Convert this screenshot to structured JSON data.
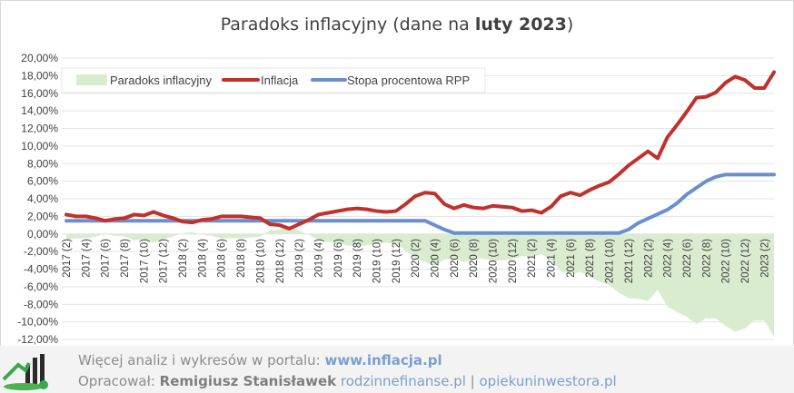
{
  "chart_data": {
    "type": "line",
    "title_prefix": "Paradoks inflacyjny (dane na ",
    "title_bold": "luty 2023",
    "title_suffix": ")",
    "ylim": [
      -12,
      20
    ],
    "y_ticks": [
      "20,00%",
      "18,00%",
      "16,00%",
      "14,00%",
      "12,00%",
      "10,00%",
      "8,00%",
      "6,00%",
      "4,00%",
      "2,00%",
      "0,00%",
      "-2,00%",
      "-4,00%",
      "-6,00%",
      "-8,00%",
      "-10,00%",
      "-12,00%"
    ],
    "x_ticks": [
      "2017 (2)",
      "2017 (4)",
      "2017 (6)",
      "2017 (8)",
      "2017 (10)",
      "2017 (12)",
      "2018 (2)",
      "2018 (4)",
      "2018 (6)",
      "2018 (8)",
      "2018 (10)",
      "2018 (12)",
      "2019 (2)",
      "2019 (4)",
      "2019 (6)",
      "2019 (8)",
      "2019 (10)",
      "2019 (12)",
      "2020 (2)",
      "2020 (4)",
      "2020 (6)",
      "2020 (8)",
      "2020 (10)",
      "2020 (12)",
      "2021 (2)",
      "2021 (4)",
      "2021 (6)",
      "2021 (8)",
      "2021 (10)",
      "2021 (12)",
      "2022 (2)",
      "2022 (4)",
      "2022 (6)",
      "2022 (8)",
      "2022 (10)",
      "2022 (12)",
      "2023 (2)"
    ],
    "grid": true,
    "legend_position": "top-left",
    "series": [
      {
        "name": "Paradoks inflacyjny",
        "kind": "area",
        "color": "#d9ecd0"
      },
      {
        "name": "Inflacja",
        "kind": "line",
        "color": "#c0312b",
        "values": [
          2.2,
          2.0,
          2.0,
          1.8,
          1.5,
          1.7,
          1.8,
          2.2,
          2.1,
          2.5,
          2.1,
          1.8,
          1.4,
          1.3,
          1.6,
          1.7,
          2.0,
          2.0,
          2.0,
          1.9,
          1.8,
          1.1,
          1.0,
          0.6,
          1.1,
          1.6,
          2.2,
          2.4,
          2.6,
          2.8,
          2.9,
          2.8,
          2.6,
          2.5,
          2.6,
          3.4,
          4.3,
          4.7,
          4.6,
          3.4,
          2.9,
          3.3,
          3.0,
          2.9,
          3.2,
          3.1,
          3.0,
          2.6,
          2.7,
          2.4,
          3.1,
          4.3,
          4.7,
          4.4,
          5.0,
          5.5,
          5.9,
          6.8,
          7.8,
          8.6,
          9.4,
          8.6,
          11.0,
          12.4,
          13.9,
          15.5,
          15.6,
          16.1,
          17.2,
          17.9,
          17.5,
          16.6,
          16.6,
          18.4
        ]
      },
      {
        "name": "Stopa procentowa RPP",
        "kind": "line",
        "color": "#6a8fd0",
        "values": [
          1.5,
          1.5,
          1.5,
          1.5,
          1.5,
          1.5,
          1.5,
          1.5,
          1.5,
          1.5,
          1.5,
          1.5,
          1.5,
          1.5,
          1.5,
          1.5,
          1.5,
          1.5,
          1.5,
          1.5,
          1.5,
          1.5,
          1.5,
          1.5,
          1.5,
          1.5,
          1.5,
          1.5,
          1.5,
          1.5,
          1.5,
          1.5,
          1.5,
          1.5,
          1.5,
          1.5,
          1.5,
          1.5,
          1.0,
          0.5,
          0.1,
          0.1,
          0.1,
          0.1,
          0.1,
          0.1,
          0.1,
          0.1,
          0.1,
          0.1,
          0.1,
          0.1,
          0.1,
          0.1,
          0.1,
          0.1,
          0.1,
          0.1,
          0.5,
          1.25,
          1.75,
          2.25,
          2.75,
          3.5,
          4.5,
          5.25,
          6.0,
          6.5,
          6.75,
          6.75,
          6.75,
          6.75,
          6.75,
          6.75
        ]
      }
    ]
  },
  "footer": {
    "line1_text": "Więcej analiz i wykresów w portalu: ",
    "line1_link": "www.inflacja.pl",
    "line2_prefix": "Opracował: ",
    "line2_author": "Remigiusz Stanisławek",
    "line2_link1": "rodzinnefinanse.pl",
    "line2_sep": " | ",
    "line2_link2": "opiekuninwestora.pl"
  }
}
